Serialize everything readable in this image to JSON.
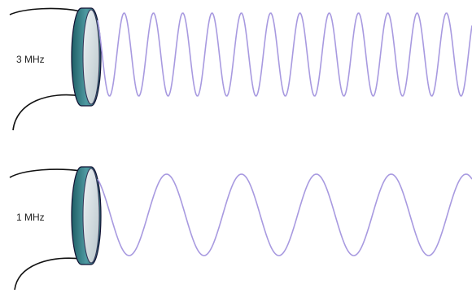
{
  "transducers": [
    {
      "label": "3 MHz"
    },
    {
      "label": "1 MHz"
    }
  ]
}
